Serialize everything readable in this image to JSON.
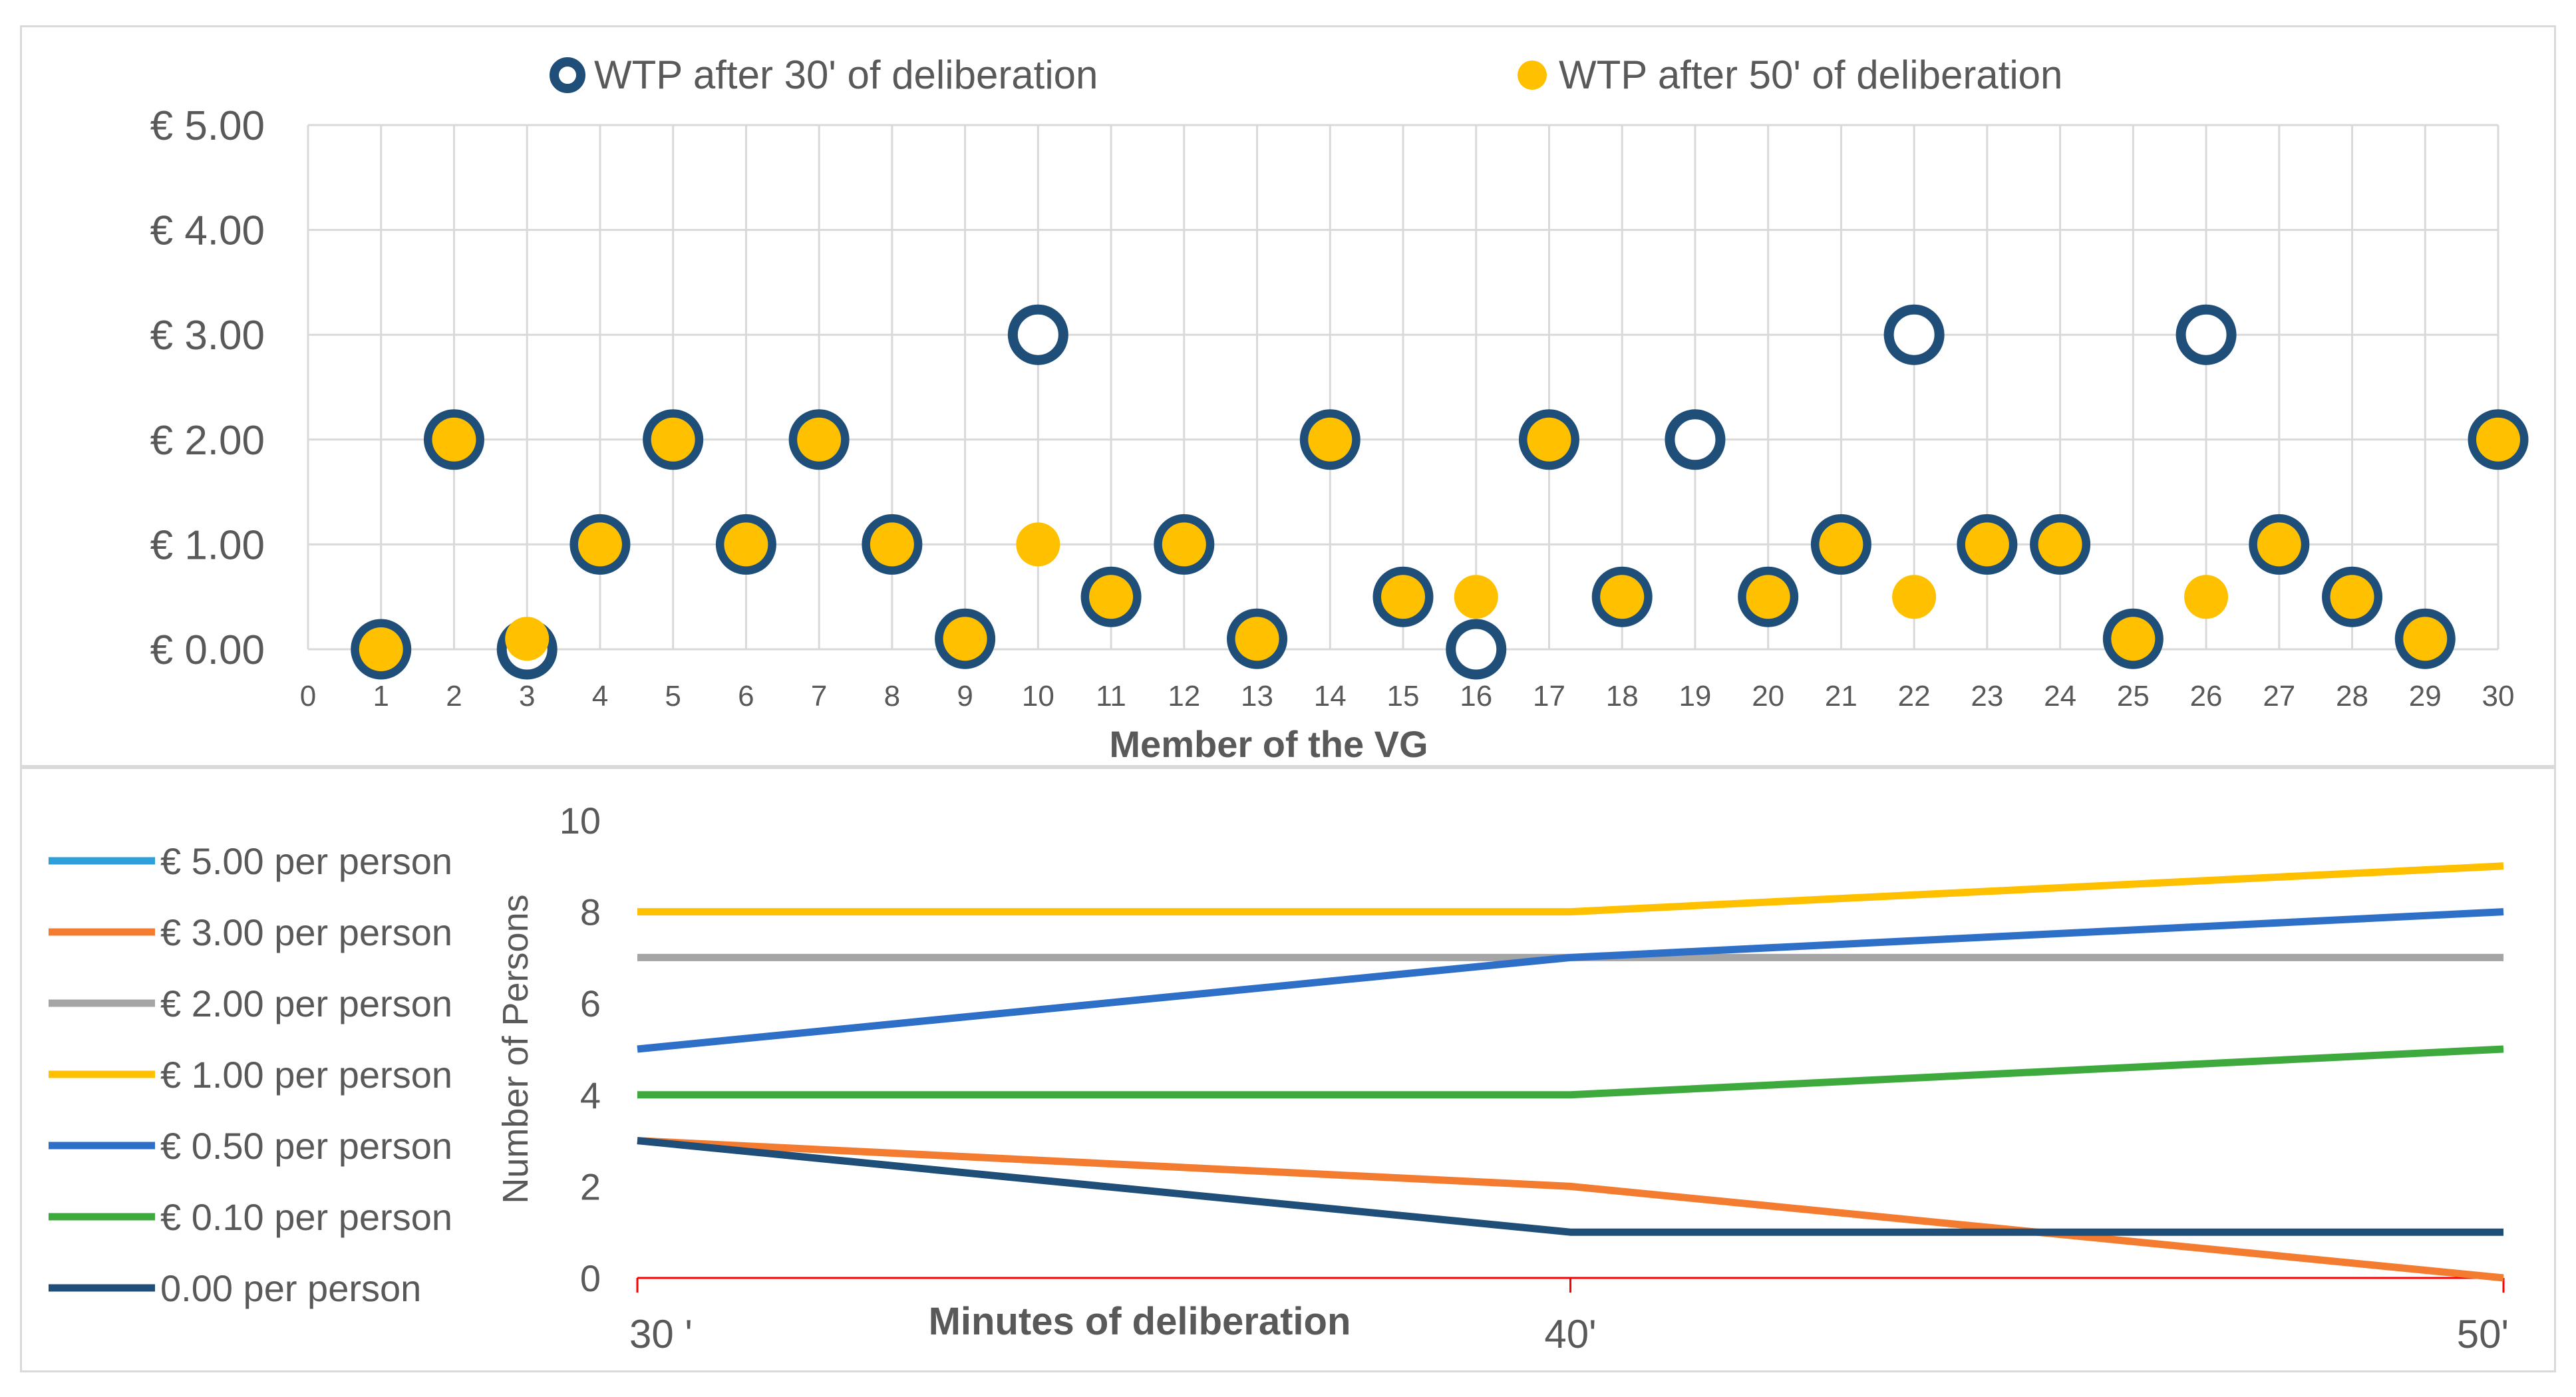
{
  "colors": {
    "navy": "#1f4e79",
    "gold": "#ffc000",
    "axis_text": "#595959",
    "grid": "#d9d9d9",
    "zero_line": "#ff0000"
  },
  "chart_data": [
    {
      "type": "scatter",
      "title": "",
      "xlabel": "Member of the VG",
      "ylabel": "",
      "xlim": [
        0,
        30
      ],
      "ylim": [
        0,
        5
      ],
      "x_ticks": [
        "0",
        "1",
        "2",
        "3",
        "4",
        "5",
        "6",
        "7",
        "8",
        "9",
        "10",
        "11",
        "12",
        "13",
        "14",
        "15",
        "16",
        "17",
        "18",
        "19",
        "20",
        "21",
        "22",
        "23",
        "24",
        "25",
        "26",
        "27",
        "28",
        "29",
        "30"
      ],
      "y_ticks": [
        {
          "value": 0,
          "label": "€ 0.00"
        },
        {
          "value": 1,
          "label": "€ 1.00"
        },
        {
          "value": 2,
          "label": "€ 2.00"
        },
        {
          "value": 3,
          "label": "€ 3.00"
        },
        {
          "value": 4,
          "label": "€ 4.00"
        },
        {
          "value": 5,
          "label": "€ 5.00"
        }
      ],
      "legend_position": "top",
      "x": [
        1,
        2,
        3,
        4,
        5,
        6,
        7,
        8,
        9,
        10,
        11,
        12,
        13,
        14,
        15,
        16,
        17,
        18,
        19,
        20,
        21,
        22,
        23,
        24,
        25,
        26,
        27,
        28,
        29,
        30
      ],
      "series": [
        {
          "name": "WTP after 30' of deliberation",
          "color": "#1f4e79",
          "marker": "ring",
          "values": [
            0,
            2,
            0,
            1,
            2,
            1,
            2,
            1,
            0.1,
            3,
            0.5,
            1,
            0.1,
            2,
            0.5,
            0,
            2,
            0.5,
            2,
            0.5,
            1,
            3,
            1,
            1,
            0.1,
            3,
            1,
            0.5,
            0.1,
            2
          ]
        },
        {
          "name": "WTP after 50' of deliberation",
          "color": "#ffc000",
          "marker": "dot",
          "values": [
            0,
            2,
            0.1,
            1,
            2,
            1,
            2,
            1,
            0.1,
            1,
            0.5,
            1,
            0.1,
            2,
            0.5,
            0.5,
            2,
            0.5,
            null,
            0.5,
            1,
            0.5,
            1,
            1,
            0.1,
            0.5,
            1,
            0.5,
            0.1,
            2
          ]
        }
      ]
    },
    {
      "type": "line",
      "title": "",
      "xlabel": "Minutes of deliberation",
      "ylabel": "Number of Persons",
      "categories": [
        "30 '",
        "40'",
        "50'"
      ],
      "ylim": [
        0,
        10
      ],
      "y_ticks": [
        "0",
        "2",
        "4",
        "6",
        "8",
        "10"
      ],
      "legend_position": "left",
      "series": [
        {
          "name": "€ 5.00 per person",
          "color": "#2e9fd8",
          "values": [
            null,
            null,
            null
          ]
        },
        {
          "name": "€ 3.00 per person",
          "color": "#f47c30",
          "values": [
            3,
            2,
            0
          ]
        },
        {
          "name": "€ 2.00 per person",
          "color": "#a5a5a5",
          "values": [
            7,
            7,
            7
          ]
        },
        {
          "name": "€ 1.00 per person",
          "color": "#ffc000",
          "values": [
            8,
            8,
            9
          ]
        },
        {
          "name": "€ 0.50 per person",
          "color": "#2e6fc8",
          "values": [
            5,
            7,
            8
          ]
        },
        {
          "name": "€ 0.10 per person",
          "color": "#3eaa3e",
          "values": [
            4,
            4,
            5
          ]
        },
        {
          "name": "0.00 per person",
          "color": "#1f4e79",
          "values": [
            3,
            1,
            1
          ]
        }
      ]
    }
  ]
}
